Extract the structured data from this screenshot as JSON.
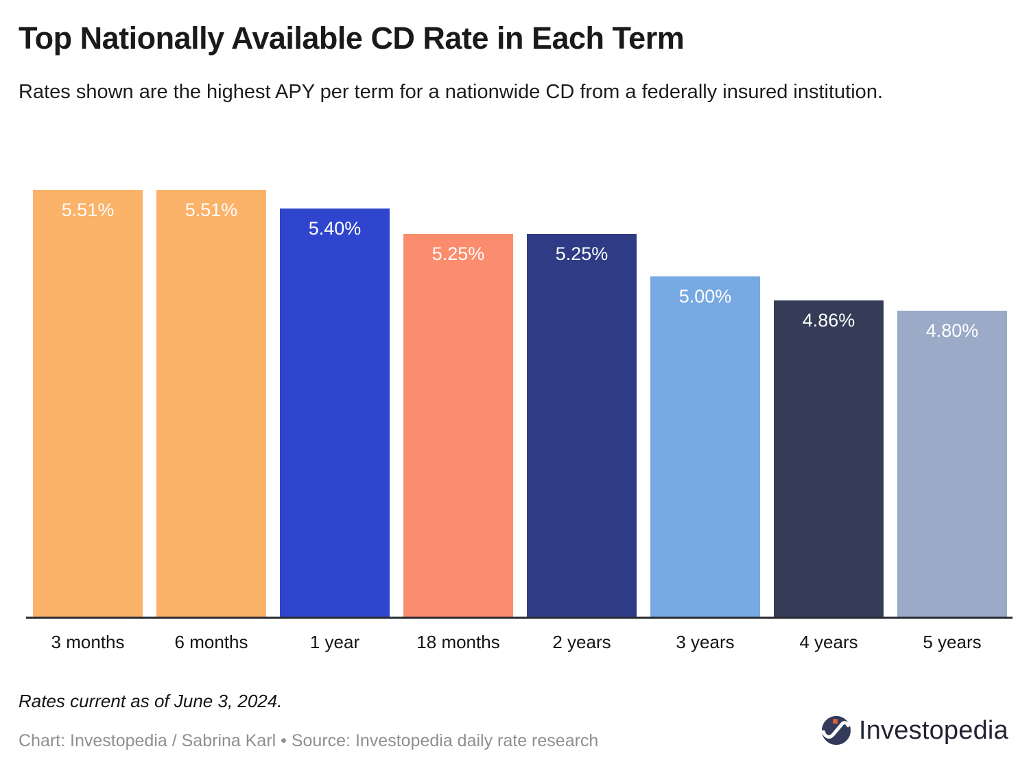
{
  "header": {
    "title": "Top Nationally Available CD Rate in Each Term",
    "subtitle": "Rates shown are the highest APY per term for a nationwide CD from a federally insured institution."
  },
  "chart_data": {
    "type": "bar",
    "title": "Top Nationally Available CD Rate in Each Term",
    "categories": [
      "3 months",
      "6 months",
      "1 year",
      "18 months",
      "2 years",
      "3 years",
      "4 years",
      "5 years"
    ],
    "values": [
      5.51,
      5.51,
      5.4,
      5.25,
      5.25,
      5.0,
      4.86,
      4.8
    ],
    "value_labels": [
      "5.51%",
      "5.51%",
      "5.40%",
      "5.25%",
      "5.25%",
      "5.00%",
      "4.86%",
      "4.80%"
    ],
    "bar_colors": [
      "#FBB269",
      "#FBB269",
      "#2F45CE",
      "#FB8C6E",
      "#2F3C85",
      "#77A9E2",
      "#343C58",
      "#9AAAC7"
    ],
    "xlabel": "",
    "ylabel": "",
    "ylim": [
      3.0,
      5.51
    ],
    "grid": false,
    "legend": "none",
    "value_label_color": "#ffffff",
    "axis_line_color": "#2b2b33"
  },
  "footer": {
    "note": "Rates current as of June 3, 2024.",
    "credit": "Chart: Investopedia / Sabrina Karl • Source: Investopedia daily rate research",
    "logo_text": "Investopedia",
    "logo_colors": {
      "circle": "#333A5A",
      "swoosh": "#ffffff",
      "dot": "#E8613D"
    }
  }
}
